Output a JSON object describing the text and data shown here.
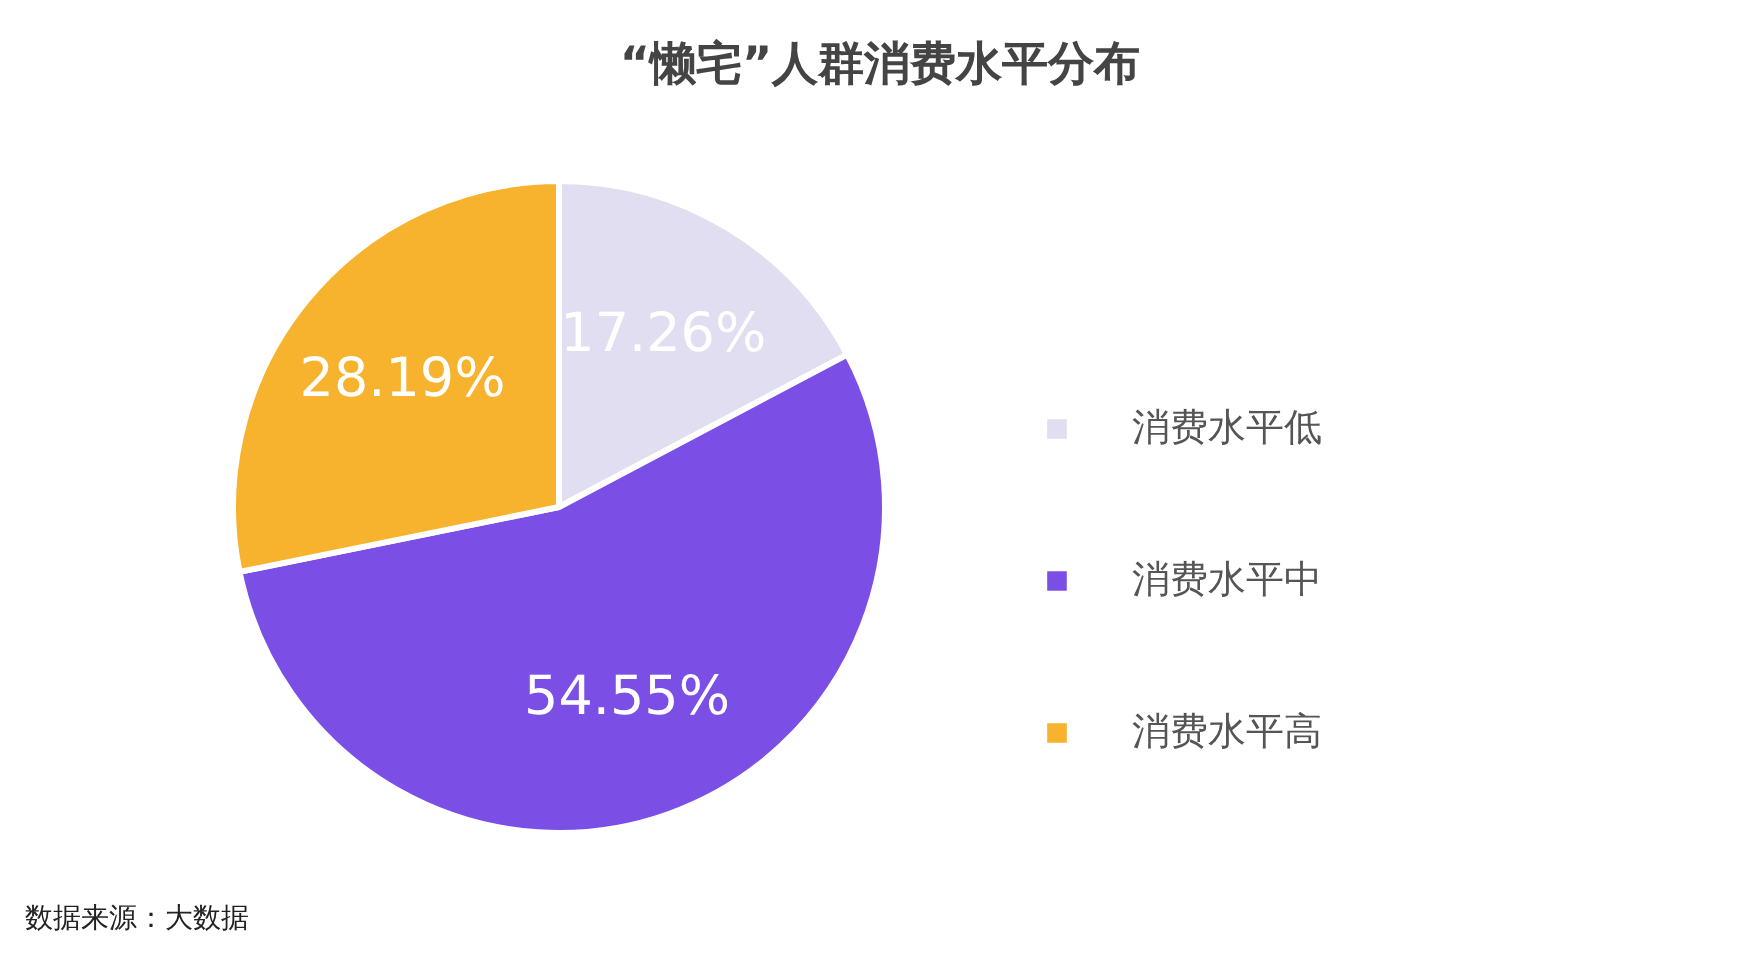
{
  "chart_data": {
    "type": "pie",
    "title": "“懒宅”人群消费水平分布",
    "categories": [
      "消费水平低",
      "消费水平中",
      "消费水平高"
    ],
    "values": [
      17.26,
      54.55,
      28.19
    ],
    "colors": [
      "#e0def0",
      "#7b4fe6",
      "#f7b22e"
    ],
    "value_labels": [
      "17.26%",
      "54.55%",
      "28.19%"
    ],
    "legend": "right",
    "annotations": [
      "数据来源：大数据"
    ]
  }
}
